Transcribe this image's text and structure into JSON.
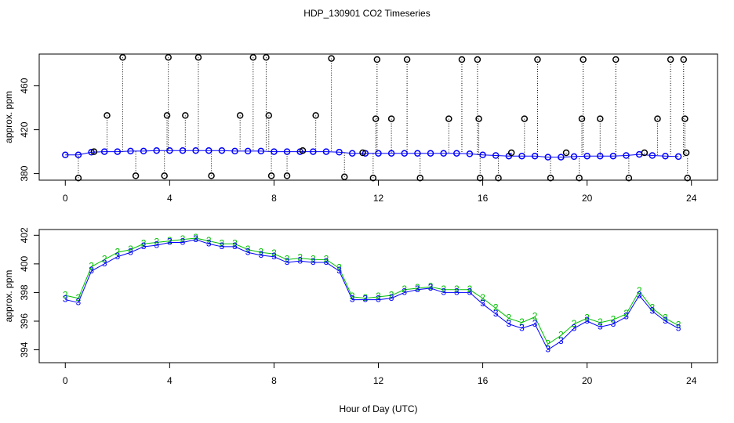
{
  "title": "HDP_130901  CO2 Timeseries",
  "chart_data": [
    {
      "type": "line",
      "ylabel": "approx. ppm",
      "x": [
        0,
        0.5,
        1,
        1.5,
        2,
        2.5,
        3,
        3.5,
        4,
        4.5,
        5,
        5.5,
        6,
        6.5,
        7,
        7.5,
        8,
        8.5,
        9,
        9.5,
        10,
        10.5,
        11,
        11.5,
        12,
        12.5,
        13,
        13.5,
        14,
        14.5,
        15,
        15.5,
        16,
        16.5,
        17,
        17.5,
        18,
        18.5,
        19,
        19.5,
        20,
        20.5,
        21,
        21.5,
        22,
        22.5,
        23,
        23.5
      ],
      "xlim": [
        -1,
        25
      ],
      "xticks": [
        0,
        4,
        8,
        12,
        16,
        20,
        24
      ],
      "ylim": [
        374,
        489
      ],
      "yticks": [
        380,
        420,
        460
      ],
      "series": [
        {
          "color": "#0000ff",
          "values": [
            397,
            397,
            399.5,
            400,
            400,
            400.5,
            400.5,
            401,
            401,
            401,
            401,
            401,
            401,
            400.5,
            400.5,
            400.5,
            400,
            400,
            400,
            400,
            400,
            399.5,
            398.5,
            398.5,
            398.5,
            398.5,
            398.5,
            398.5,
            398.5,
            398.5,
            398.5,
            398,
            397,
            396.5,
            396,
            396,
            396,
            395,
            395,
            395.5,
            396,
            396,
            396,
            396.5,
            397.5,
            396.5,
            396,
            395.5
          ]
        },
        {
          "color": "#000000",
          "x": [
            0.5,
            1.1,
            1.6,
            2.2,
            2.7,
            3.8,
            3.9,
            3.95,
            4.6,
            5.1,
            5.6,
            6.7,
            7.2,
            7.7,
            7.8,
            7.9,
            8.5,
            9.1,
            9.6,
            10.2,
            10.7,
            11.4,
            11.8,
            11.9,
            11.95,
            12.5,
            13.1,
            13.6,
            14.7,
            15.2,
            15.8,
            15.85,
            15.9,
            16.6,
            17.1,
            17.6,
            18.1,
            18.6,
            19.2,
            19.7,
            19.8,
            19.85,
            20.5,
            21.1,
            21.6,
            22.2,
            22.7,
            23.2,
            23.7,
            23.75,
            23.8,
            23.85
          ],
          "values": [
            376,
            400,
            433,
            486,
            378,
            378,
            433,
            486,
            433,
            486,
            378,
            433,
            486,
            486,
            433,
            378,
            378,
            401,
            433,
            485,
            377,
            399,
            376,
            430,
            484,
            430,
            484,
            376,
            430,
            484,
            484,
            430,
            376,
            376,
            399,
            430,
            484,
            376,
            399,
            376,
            430,
            484,
            430,
            484,
            376,
            399,
            430,
            484,
            484,
            430,
            399,
            376
          ]
        }
      ]
    },
    {
      "type": "line",
      "ylabel": "approx. ppm",
      "xlabel": "Hour of Day (UTC)",
      "x": [
        0,
        0.5,
        1,
        1.5,
        2,
        2.5,
        3,
        3.5,
        4,
        4.5,
        5,
        5.5,
        6,
        6.5,
        7,
        7.5,
        8,
        8.5,
        9,
        9.5,
        10,
        10.5,
        11,
        11.5,
        12,
        12.5,
        13,
        13.5,
        14,
        14.5,
        15,
        15.5,
        16,
        16.5,
        17,
        17.5,
        18,
        18.5,
        19,
        19.5,
        20,
        20.5,
        21,
        21.5,
        22,
        22.5,
        23,
        23.5
      ],
      "xlim": [
        -1,
        25
      ],
      "xticks": [
        0,
        4,
        8,
        12,
        16,
        20,
        24
      ],
      "ylim": [
        393.1,
        402.4
      ],
      "yticks": [
        394,
        396,
        398,
        400,
        402
      ],
      "series": [
        {
          "color": "#00c000",
          "symbol": "2",
          "values": [
            397.8,
            397.6,
            399.8,
            400.3,
            400.8,
            401.0,
            401.4,
            401.5,
            401.6,
            401.7,
            401.8,
            401.6,
            401.4,
            401.4,
            401.0,
            400.8,
            400.7,
            400.3,
            400.4,
            400.3,
            400.3,
            399.7,
            397.7,
            397.6,
            397.7,
            397.8,
            398.2,
            398.3,
            398.4,
            398.2,
            398.2,
            398.2,
            397.6,
            396.9,
            396.2,
            395.9,
            396.3,
            394.4,
            395.0,
            395.8,
            396.2,
            395.9,
            396.1,
            396.5,
            398.1,
            396.9,
            396.2,
            395.7
          ]
        },
        {
          "color": "#0000ff",
          "symbol": "3",
          "values": [
            397.5,
            397.3,
            399.5,
            400.0,
            400.5,
            400.8,
            401.2,
            401.3,
            401.5,
            401.5,
            401.7,
            401.4,
            401.2,
            401.2,
            400.8,
            400.6,
            400.5,
            400.1,
            400.2,
            400.1,
            400.1,
            399.5,
            397.5,
            397.5,
            397.5,
            397.6,
            398.0,
            398.2,
            398.3,
            398.0,
            398.0,
            398.0,
            397.2,
            396.5,
            395.8,
            395.5,
            395.8,
            394.0,
            394.6,
            395.5,
            396.0,
            395.6,
            395.8,
            396.3,
            397.8,
            396.7,
            396.0,
            395.5
          ]
        }
      ]
    }
  ]
}
